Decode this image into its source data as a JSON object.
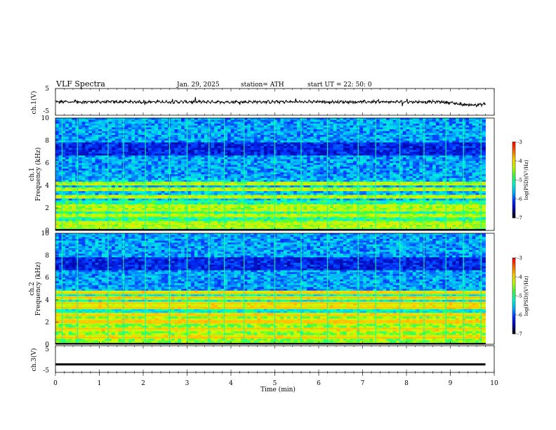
{
  "header": {
    "title": "VLF  Spectra",
    "date": "Jan. 29, 2025",
    "station": "station= ATH",
    "start": "start  UT  =   22: 50: 0"
  },
  "chart_data": [
    {
      "type": "line",
      "name": "waveform-ch1",
      "ylabel": "ch.1(V)",
      "yticks": [
        "5",
        "-5"
      ],
      "ylim": [
        -5,
        5
      ],
      "xlim": [
        0,
        10
      ],
      "baseline": 0,
      "trend": [
        {
          "t": 0.0,
          "v": 0.0
        },
        {
          "t": 8.8,
          "v": 0.0
        },
        {
          "t": 9.0,
          "v": -0.3
        },
        {
          "t": 9.3,
          "v": -1.0
        },
        {
          "t": 9.6,
          "v": -1.2
        },
        {
          "t": 9.8,
          "v": -0.8
        }
      ]
    },
    {
      "type": "heatmap",
      "name": "spectrogram-ch1",
      "ylabel_top": "ch.1",
      "ylabel": "Frequency  (kHz)",
      "ylim": [
        0,
        10
      ],
      "yticks": [
        "0",
        "2",
        "4",
        "6",
        "8",
        "10"
      ],
      "xlim": [
        0,
        10
      ],
      "data_end_min": 9.8,
      "strong_bands_khz": [
        0.3,
        0.6,
        1.3,
        1.8,
        2.2,
        3.0,
        3.6,
        4.1
      ],
      "sferic_times_min": [
        0.15,
        0.5,
        1.2,
        1.55,
        2.05,
        2.6,
        3.0,
        3.5,
        3.85,
        4.3,
        5.0,
        5.6,
        6.2,
        6.9,
        7.3,
        7.85,
        8.4,
        8.9,
        9.3,
        9.7
      ],
      "colorbar": {
        "label": "log(PSD)(V²/Hz)",
        "ticks": [
          "-3",
          "-4",
          "-5",
          "-6",
          "-7"
        ],
        "range": [
          -7,
          -3
        ]
      }
    },
    {
      "type": "heatmap",
      "name": "spectrogram-ch2",
      "ylabel_top": "ch.2",
      "ylabel": "Frequency  (kHz)",
      "ylim": [
        0,
        10
      ],
      "yticks": [
        "0",
        "2",
        "4",
        "6",
        "8",
        "10"
      ],
      "xlim": [
        0,
        10
      ],
      "data_end_min": 9.8,
      "strong_bands_khz": [
        0.6,
        1.4,
        1.95,
        2.1,
        2.6,
        3.3,
        3.7,
        4.2,
        4.6
      ],
      "sferic_times_min": [
        0.15,
        0.5,
        1.2,
        1.55,
        2.05,
        2.6,
        3.0,
        3.5,
        3.85,
        4.3,
        5.0,
        5.6,
        6.2,
        6.9,
        7.3,
        7.85,
        8.4,
        8.9,
        9.3,
        9.7
      ],
      "colorbar": {
        "label": "log(PSD)(V²/Hz)",
        "ticks": [
          "-3",
          "-4",
          "-5",
          "-6",
          "-7"
        ],
        "range": [
          -7,
          -3
        ]
      }
    },
    {
      "type": "line",
      "name": "waveform-ch3",
      "ylabel": "ch.3(V)",
      "yticks": [
        "5",
        "-5"
      ],
      "ylim": [
        -5,
        5
      ],
      "xlim": [
        0,
        10
      ],
      "level": -2.0
    }
  ],
  "xaxis": {
    "label": "Time  (min)",
    "ticks": [
      "0",
      "1",
      "2",
      "3",
      "4",
      "5",
      "6",
      "7",
      "8",
      "9",
      "10"
    ]
  },
  "colors": {
    "colormap": [
      "#000000",
      "#0000a0",
      "#0030ff",
      "#00b4ff",
      "#00ffd0",
      "#40ff40",
      "#c8ff00",
      "#ffd000",
      "#ff6000",
      "#ff0000",
      "#ffffff"
    ]
  }
}
